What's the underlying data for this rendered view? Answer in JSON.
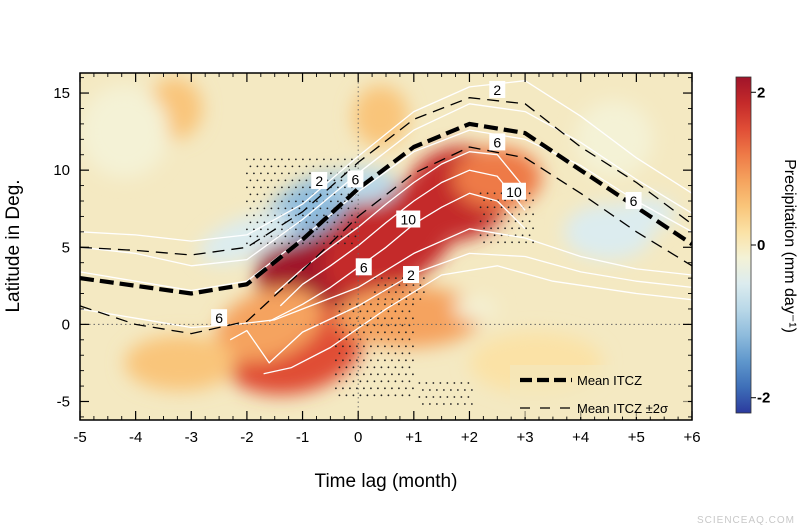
{
  "chart_data": {
    "type": "heatmap",
    "title": "",
    "xlabel": "Time lag (month)",
    "ylabel": "Latitude in Deg.",
    "xlim": [
      -5,
      6
    ],
    "ylim": [
      -6.2,
      16.3
    ],
    "x_ticks": [
      {
        "v": -5,
        "label": "-5"
      },
      {
        "v": -4,
        "label": "-4"
      },
      {
        "v": -3,
        "label": "-3"
      },
      {
        "v": -2,
        "label": "-2"
      },
      {
        "v": -1,
        "label": "-1"
      },
      {
        "v": 0,
        "label": "0"
      },
      {
        "v": 1,
        "label": "+1"
      },
      {
        "v": 2,
        "label": "+2"
      },
      {
        "v": 3,
        "label": "+3"
      },
      {
        "v": 4,
        "label": "+4"
      },
      {
        "v": 5,
        "label": "+5"
      },
      {
        "v": 6,
        "label": "+6"
      }
    ],
    "y_ticks": [
      {
        "v": -5,
        "label": "-5"
      },
      {
        "v": 0,
        "label": "0"
      },
      {
        "v": 5,
        "label": "5"
      },
      {
        "v": 10,
        "label": "10"
      },
      {
        "v": 15,
        "label": "15"
      }
    ],
    "colorbar": {
      "label": "Precipitation (mm day⁻¹)",
      "ticks": [
        {
          "v": 2,
          "label": "2"
        },
        {
          "v": 0,
          "label": "0"
        },
        {
          "v": -2,
          "label": "-2"
        }
      ],
      "range": [
        -2.2,
        2.2
      ],
      "colors_low_to_high": [
        "#2b3a9e",
        "#3e6fb8",
        "#5f97cc",
        "#8ebbdc",
        "#b9d8e8",
        "#dcecef",
        "#f4f2d6",
        "#fbe2a6",
        "#f9c57a",
        "#f5a35e",
        "#ee7a47",
        "#e04d36",
        "#c42a2a",
        "#a0142a"
      ]
    },
    "anomaly_blobs": [
      {
        "x": -0.6,
        "y": 4.2,
        "rx": 1.3,
        "ry": 3.6,
        "rot": -30,
        "v": 2.2
      },
      {
        "x": 0.6,
        "y": 5.5,
        "rx": 1.4,
        "ry": 3.0,
        "rot": -35,
        "v": 1.9
      },
      {
        "x": 1.8,
        "y": 8.5,
        "rx": 1.0,
        "ry": 3.0,
        "rot": -20,
        "v": 1.7
      },
      {
        "x": -1.2,
        "y": -1.5,
        "rx": 1.3,
        "ry": 3.0,
        "rot": -10,
        "v": 1.4
      },
      {
        "x": 2.5,
        "y": 9.5,
        "rx": 0.8,
        "ry": 2.0,
        "rot": 0,
        "v": 1.1
      },
      {
        "x": -1.6,
        "y": 0.0,
        "rx": 1.0,
        "ry": 2.2,
        "rot": -20,
        "v": 1.0
      },
      {
        "x": 0.9,
        "y": 0.5,
        "rx": 1.3,
        "ry": 2.0,
        "rot": 0,
        "v": 0.9
      },
      {
        "x": -3.2,
        "y": -2.5,
        "rx": 1.0,
        "ry": 1.8,
        "rot": 0,
        "v": 0.6
      },
      {
        "x": -3.3,
        "y": 14.0,
        "rx": 0.5,
        "ry": 2.0,
        "rot": 0,
        "v": 0.4
      },
      {
        "x": 0.4,
        "y": 13.5,
        "rx": 0.5,
        "ry": 2.0,
        "rot": 0,
        "v": 0.5
      },
      {
        "x": 3.2,
        "y": -2.5,
        "rx": 1.2,
        "ry": 2.0,
        "rot": 0,
        "v": 0.3
      },
      {
        "x": -0.9,
        "y": 7.5,
        "rx": 1.0,
        "ry": 1.7,
        "rot": -30,
        "v": -1.2
      },
      {
        "x": 0.1,
        "y": 9.0,
        "rx": 0.6,
        "ry": 1.2,
        "rot": 0,
        "v": -0.8
      },
      {
        "x": -2.0,
        "y": 5.6,
        "rx": 0.9,
        "ry": 1.3,
        "rot": -20,
        "v": -0.5
      },
      {
        "x": 4.5,
        "y": 6.0,
        "rx": 0.8,
        "ry": 1.8,
        "rot": 0,
        "v": -0.6
      },
      {
        "x": 5.2,
        "y": 7.2,
        "rx": 0.5,
        "ry": 1.0,
        "rot": 0,
        "v": -0.4
      },
      {
        "x": -4.2,
        "y": 12.5,
        "rx": 0.8,
        "ry": 3.0,
        "rot": 0,
        "v": -0.2
      },
      {
        "x": 4.6,
        "y": 12.0,
        "rx": 0.7,
        "ry": 2.5,
        "rot": 0,
        "v": -0.2
      },
      {
        "x": 2.1,
        "y": 1.0,
        "rx": 0.4,
        "ry": 0.7,
        "rot": 0,
        "v": -0.2
      }
    ],
    "series": [
      {
        "name": "Mean ITCZ",
        "style": "thick-dash",
        "x": [
          -5,
          -4,
          -3,
          -2,
          -1,
          0,
          1,
          2,
          3,
          4,
          5,
          6
        ],
        "y": [
          3.0,
          2.5,
          2.0,
          2.6,
          5.5,
          8.8,
          11.5,
          13.0,
          12.4,
          10.0,
          7.6,
          5.2
        ]
      },
      {
        "name": "Mean ITCZ ±2σ",
        "style": "thin-dash",
        "x": [
          -5,
          -4,
          -3,
          -2,
          -1,
          0,
          1,
          2,
          3,
          4,
          5,
          6
        ],
        "y": [
          5.0,
          4.8,
          4.5,
          5.0,
          7.3,
          10.5,
          13.3,
          14.7,
          14.3,
          11.5,
          9.2,
          6.5
        ]
      },
      {
        "name": "",
        "style": "thin-dash",
        "x": [
          -5,
          -4,
          -3,
          -2,
          -1,
          0,
          1,
          2,
          3,
          4,
          5,
          6
        ],
        "y": [
          1.2,
          0.0,
          -0.6,
          0.2,
          3.5,
          7.0,
          9.8,
          11.5,
          10.8,
          8.5,
          6.0,
          3.8
        ]
      }
    ],
    "climatology_contours": [
      {
        "x": [
          -5,
          -4,
          -3,
          -2,
          -1,
          0,
          1,
          2,
          3,
          4,
          5,
          6
        ],
        "y": [
          6.0,
          5.8,
          5.4,
          5.8,
          7.8,
          10.9,
          13.8,
          15.4,
          15.8,
          13.5,
          10.8,
          8.5
        ]
      },
      {
        "x": [
          -5,
          -4,
          -3,
          -2,
          -1,
          0,
          1,
          2,
          3,
          4,
          5,
          6
        ],
        "y": [
          5.0,
          4.6,
          3.8,
          4.2,
          6.8,
          9.8,
          12.6,
          14.3,
          13.8,
          11.8,
          9.4,
          7.2
        ]
      },
      {
        "x": [
          -5,
          -4,
          -3,
          -2,
          -1,
          0,
          1,
          2,
          3,
          4,
          5,
          6
        ],
        "y": [
          3.4,
          2.8,
          2.2,
          2.8,
          5.6,
          8.6,
          11.2,
          12.6,
          12.0,
          10.3,
          8.0,
          6.0
        ]
      },
      {
        "x": [
          -1.5,
          -1,
          -0.5,
          0,
          0.5,
          1,
          1.5,
          2,
          2.5,
          3
        ],
        "y": [
          2.0,
          3.6,
          5.0,
          6.3,
          7.8,
          9.2,
          10.4,
          11.2,
          11.0,
          8.8
        ]
      },
      {
        "x": [
          -1.4,
          -1,
          -0.5,
          0,
          0.5,
          1,
          1.5,
          2,
          2.5,
          3
        ],
        "y": [
          1.2,
          2.6,
          3.8,
          5.1,
          6.6,
          8.0,
          9.2,
          10.0,
          9.6,
          7.4
        ]
      },
      {
        "x": [
          -1.6,
          -1,
          -0.5,
          0,
          0.5,
          1,
          1.5,
          2,
          2.5,
          3
        ],
        "y": [
          0.2,
          1.3,
          2.4,
          3.7,
          5.0,
          6.5,
          7.6,
          8.5,
          8.0,
          6.2
        ]
      },
      {
        "x": [
          -5,
          -4,
          -3,
          -2.2,
          -1.5,
          -1,
          0,
          1,
          2,
          3,
          4,
          5,
          6
        ],
        "y": [
          1.0,
          0.4,
          -0.2,
          0.0,
          0.3,
          1.0,
          2.4,
          4.6,
          6.2,
          5.6,
          4.4,
          3.6,
          3.2
        ]
      },
      {
        "x": [
          -2.3,
          -2,
          -1.6,
          -1,
          0,
          1,
          2,
          3,
          4,
          5,
          6
        ],
        "y": [
          -1.0,
          -0.4,
          -2.5,
          -0.5,
          1.2,
          3.3,
          4.6,
          4.4,
          3.4,
          2.8,
          2.4
        ]
      },
      {
        "x": [
          -1.7,
          -1.2,
          -0.5,
          0.5,
          1.5,
          2.5,
          3.5,
          5,
          6
        ],
        "y": [
          -3.2,
          -2.8,
          -1.5,
          1.0,
          3.2,
          3.8,
          2.8,
          2.0,
          1.6
        ]
      }
    ],
    "contour_labels": [
      {
        "x": 2.5,
        "y": 15.2,
        "text": "2"
      },
      {
        "x": 2.5,
        "y": 11.8,
        "text": "6"
      },
      {
        "x": 2.8,
        "y": 8.6,
        "text": "10"
      },
      {
        "x": 0.9,
        "y": 6.8,
        "text": "10"
      },
      {
        "x": 0.1,
        "y": 3.7,
        "text": "6"
      },
      {
        "x": 0.95,
        "y": 3.2,
        "text": "2"
      },
      {
        "x": -0.7,
        "y": 9.3,
        "text": "2"
      },
      {
        "x": -0.05,
        "y": 9.4,
        "text": "6"
      },
      {
        "x": -2.5,
        "y": 0.4,
        "text": "6"
      },
      {
        "x": 4.95,
        "y": 8.0,
        "text": "6"
      }
    ],
    "stipple_regions": [
      {
        "x0": -2.0,
        "x1": 0.0,
        "y0": 5.0,
        "y1": 10.7
      },
      {
        "x0": -0.4,
        "x1": 1.0,
        "y0": -4.8,
        "y1": 1.3
      },
      {
        "x0": 2.2,
        "x1": 3.2,
        "y0": 5.0,
        "y1": 8.5
      },
      {
        "x0": 1.1,
        "x1": 2.1,
        "y0": -5.6,
        "y1": -3.8
      },
      {
        "x0": 0.3,
        "x1": 1.2,
        "y0": 1.3,
        "y1": 3.0
      }
    ],
    "reference_lines": {
      "x": 0,
      "y": 0
    },
    "legend": {
      "position": "bottom-right",
      "entries": [
        {
          "label": "Mean ITCZ",
          "style": "thick-dash"
        },
        {
          "label": "Mean ITCZ ±2σ",
          "style": "thin-dash"
        }
      ]
    }
  },
  "watermark": "SCIENCEAQ.COM"
}
